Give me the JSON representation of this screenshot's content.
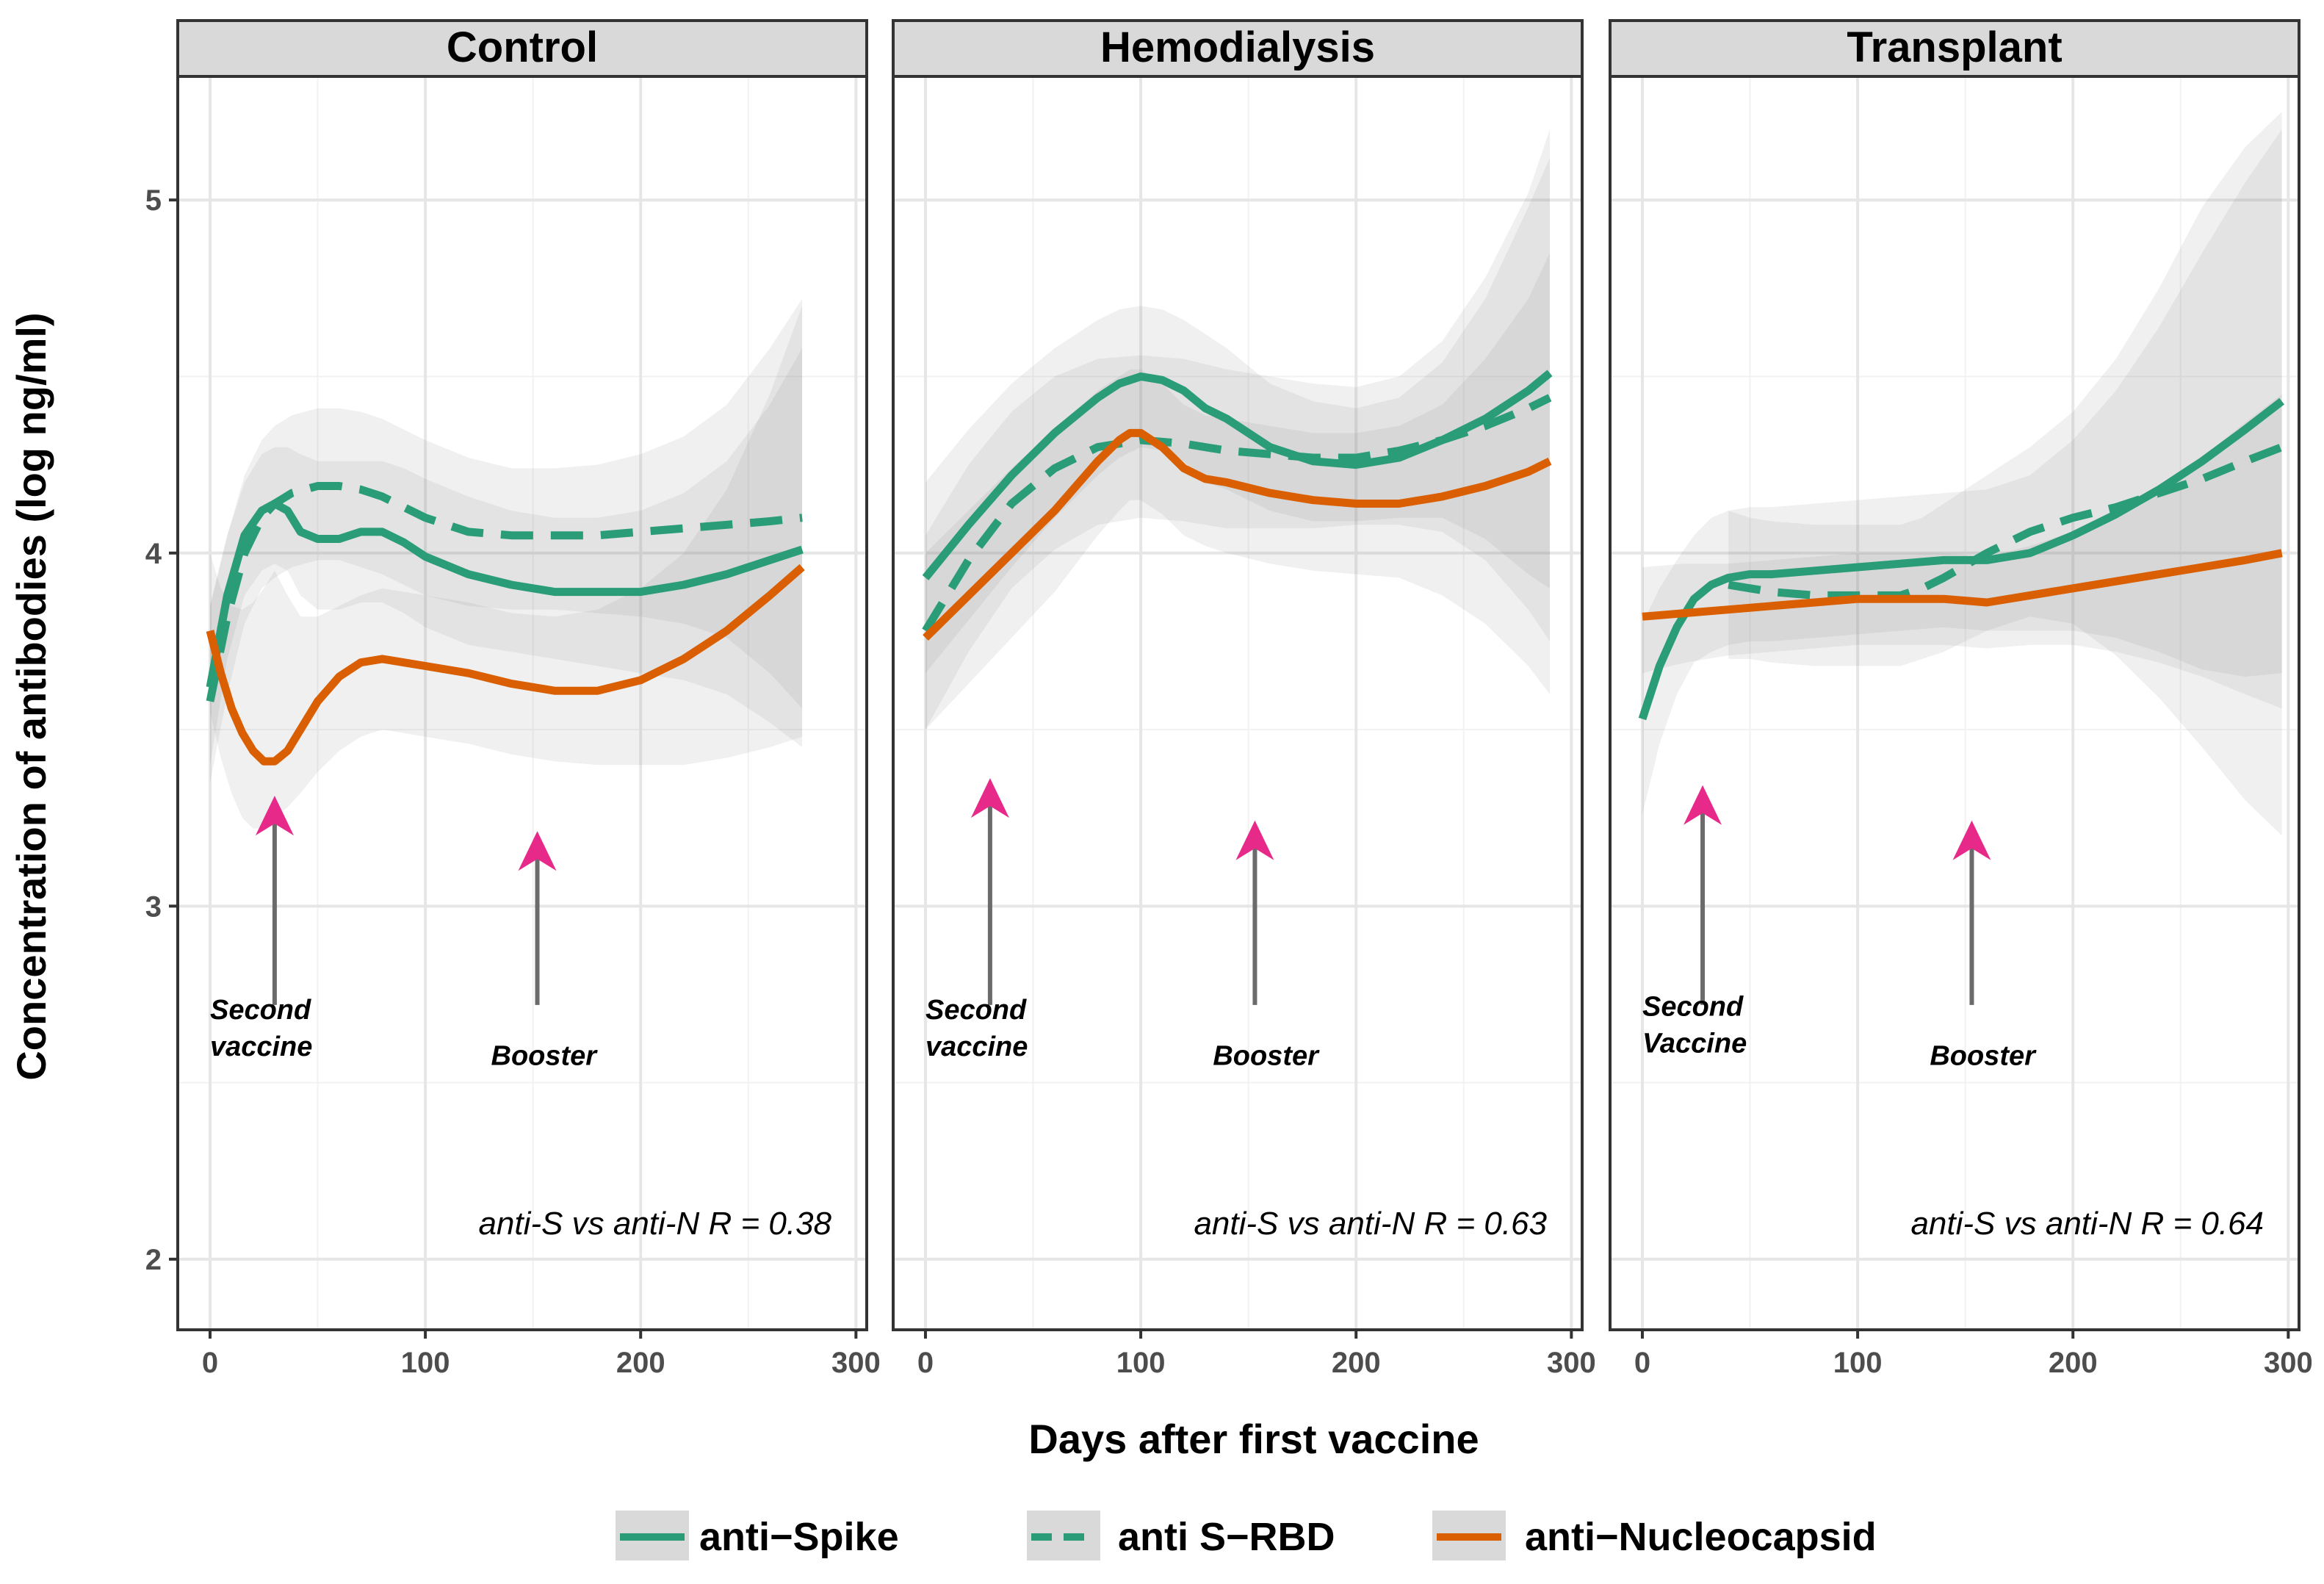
{
  "chart_data": {
    "type": "line",
    "subtype": "faceted smoothed curves with confidence bands",
    "xlabel": "Days after first vaccine",
    "ylabel": "Concentration of antibodies (log ng/ml)",
    "xlim": [
      -15,
      305
    ],
    "ylim": [
      1.8,
      5.35
    ],
    "xticks": [
      0,
      100,
      200,
      300
    ],
    "xtick_labels": [
      "0",
      "100",
      "200",
      "300"
    ],
    "yticks": [
      2,
      3,
      4,
      5
    ],
    "ytick_labels": [
      "2",
      "3",
      "4",
      "5"
    ],
    "grid": true,
    "legend": {
      "placement": "bottom",
      "entries": [
        {
          "label": "anti−Spike",
          "color": "#2a9d78",
          "dash": "solid"
        },
        {
          "label": "anti S−RBD",
          "color": "#2a9d78",
          "dash": "dashed"
        },
        {
          "label": "anti−Nucleocapsid",
          "color": "#d95f02",
          "dash": "solid"
        }
      ]
    },
    "series_colors": {
      "anti-Spike": "#2a9d78",
      "anti-S-RBD": "#2a9d78",
      "anti-Nucleocapsid": "#d95f02"
    },
    "arrow_color": "#e7298a",
    "panels": [
      {
        "title": "Control",
        "r_text": "anti-S vs anti-N R = 0.38",
        "annotations": [
          {
            "lines": [
              "Second",
              "vaccine"
            ],
            "x": 30,
            "arrow_top": 3.3,
            "arrow_bottom": 2.72,
            "label_y": 2.68,
            "align": "start",
            "label_x": 0
          },
          {
            "lines": [
              "Booster"
            ],
            "x": 152,
            "arrow_top": 3.2,
            "arrow_bottom": 2.72,
            "label_y": 2.55,
            "align": "middle",
            "label_x": 155
          }
        ],
        "series": [
          {
            "name": "anti-Spike",
            "dash": "solid",
            "x": [
              0,
              8,
              16,
              24,
              30,
              36,
              42,
              50,
              60,
              70,
              80,
              90,
              100,
              120,
              140,
              160,
              180,
              200,
              220,
              240,
              260,
              275
            ],
            "y": [
              3.62,
              3.88,
              4.05,
              4.12,
              4.14,
              4.12,
              4.06,
              4.04,
              4.04,
              4.06,
              4.06,
              4.03,
              3.99,
              3.94,
              3.91,
              3.89,
              3.89,
              3.89,
              3.91,
              3.94,
              3.98,
              4.01
            ],
            "upper": [
              3.85,
              4.05,
              4.2,
              4.28,
              4.3,
              4.3,
              4.28,
              4.26,
              4.26,
              4.26,
              4.26,
              4.24,
              4.21,
              4.16,
              4.12,
              4.1,
              4.1,
              4.12,
              4.17,
              4.26,
              4.42,
              4.58
            ],
            "lower": [
              3.4,
              3.7,
              3.88,
              3.95,
              3.97,
              3.95,
              3.88,
              3.84,
              3.84,
              3.86,
              3.86,
              3.83,
              3.79,
              3.74,
              3.72,
              3.7,
              3.68,
              3.66,
              3.64,
              3.6,
              3.52,
              3.45
            ]
          },
          {
            "name": "anti-S-RBD",
            "dash": "dashed",
            "x": [
              0,
              8,
              16,
              24,
              30,
              38,
              50,
              60,
              70,
              80,
              90,
              100,
              120,
              140,
              160,
              180,
              200,
              220,
              240,
              260,
              275
            ],
            "y": [
              3.58,
              3.82,
              4.0,
              4.1,
              4.14,
              4.17,
              4.19,
              4.19,
              4.18,
              4.16,
              4.13,
              4.1,
              4.06,
              4.05,
              4.05,
              4.05,
              4.06,
              4.07,
              4.08,
              4.09,
              4.1
            ],
            "upper": [
              3.85,
              4.05,
              4.22,
              4.32,
              4.36,
              4.39,
              4.41,
              4.41,
              4.4,
              4.38,
              4.35,
              4.32,
              4.27,
              4.24,
              4.24,
              4.25,
              4.28,
              4.33,
              4.42,
              4.58,
              4.72
            ],
            "lower": [
              3.35,
              3.6,
              3.8,
              3.9,
              3.93,
              3.96,
              3.98,
              3.98,
              3.96,
              3.94,
              3.91,
              3.88,
              3.85,
              3.84,
              3.84,
              3.83,
              3.82,
              3.8,
              3.76,
              3.66,
              3.56
            ]
          },
          {
            "name": "anti-Nucleocapsid",
            "dash": "solid",
            "x": [
              0,
              5,
              10,
              15,
              20,
              25,
              30,
              36,
              42,
              50,
              60,
              70,
              80,
              90,
              100,
              120,
              140,
              160,
              180,
              200,
              220,
              240,
              260,
              275
            ],
            "y": [
              3.78,
              3.66,
              3.56,
              3.49,
              3.44,
              3.41,
              3.41,
              3.44,
              3.5,
              3.58,
              3.65,
              3.69,
              3.7,
              3.69,
              3.68,
              3.66,
              3.63,
              3.61,
              3.61,
              3.64,
              3.7,
              3.78,
              3.88,
              3.96
            ],
            "upper": [
              4.0,
              3.9,
              3.85,
              3.84,
              3.86,
              3.9,
              3.95,
              3.88,
              3.82,
              3.82,
              3.85,
              3.88,
              3.9,
              3.89,
              3.88,
              3.86,
              3.83,
              3.82,
              3.84,
              3.9,
              4.0,
              4.18,
              4.45,
              4.7
            ],
            "lower": [
              3.55,
              3.42,
              3.32,
              3.25,
              3.22,
              3.22,
              3.25,
              3.28,
              3.32,
              3.38,
              3.44,
              3.48,
              3.5,
              3.49,
              3.48,
              3.46,
              3.43,
              3.41,
              3.4,
              3.4,
              3.4,
              3.42,
              3.45,
              3.48
            ]
          }
        ]
      },
      {
        "title": "Hemodialysis",
        "r_text": "anti-S vs anti-N R = 0.63",
        "annotations": [
          {
            "lines": [
              "Second",
              "vaccine"
            ],
            "x": 30,
            "arrow_top": 3.35,
            "arrow_bottom": 2.72,
            "label_y": 2.68,
            "align": "start",
            "label_x": 0
          },
          {
            "lines": [
              "Booster"
            ],
            "x": 153,
            "arrow_top": 3.23,
            "arrow_bottom": 2.72,
            "label_y": 2.55,
            "align": "middle",
            "label_x": 158
          }
        ],
        "series": [
          {
            "name": "anti-Spike",
            "dash": "solid",
            "x": [
              0,
              20,
              40,
              60,
              80,
              90,
              100,
              110,
              120,
              130,
              140,
              150,
              160,
              180,
              200,
              220,
              240,
              260,
              280,
              290
            ],
            "y": [
              3.93,
              4.08,
              4.22,
              4.34,
              4.44,
              4.48,
              4.5,
              4.49,
              4.46,
              4.41,
              4.38,
              4.34,
              4.3,
              4.26,
              4.25,
              4.27,
              4.32,
              4.38,
              4.46,
              4.51
            ],
            "upper": [
              4.2,
              4.35,
              4.48,
              4.58,
              4.66,
              4.69,
              4.7,
              4.69,
              4.66,
              4.62,
              4.58,
              4.53,
              4.48,
              4.43,
              4.41,
              4.44,
              4.54,
              4.72,
              4.98,
              5.12
            ],
            "lower": [
              3.66,
              3.81,
              3.96,
              4.1,
              4.22,
              4.27,
              4.3,
              4.29,
              4.26,
              4.2,
              4.18,
              4.15,
              4.12,
              4.09,
              4.09,
              4.1,
              4.1,
              4.04,
              3.94,
              3.9
            ]
          },
          {
            "name": "anti-S-RBD",
            "dash": "dashed",
            "x": [
              0,
              20,
              40,
              60,
              80,
              100,
              120,
              140,
              160,
              180,
              200,
              220,
              240,
              260,
              280,
              290
            ],
            "y": [
              3.78,
              3.98,
              4.14,
              4.24,
              4.3,
              4.32,
              4.31,
              4.29,
              4.28,
              4.27,
              4.27,
              4.29,
              4.32,
              4.36,
              4.41,
              4.44
            ],
            "upper": [
              4.05,
              4.25,
              4.4,
              4.5,
              4.55,
              4.56,
              4.55,
              4.52,
              4.5,
              4.48,
              4.47,
              4.5,
              4.6,
              4.78,
              5.02,
              5.2
            ],
            "lower": [
              3.5,
              3.72,
              3.9,
              4.01,
              4.08,
              4.1,
              4.09,
              4.07,
              4.07,
              4.07,
              4.08,
              4.08,
              4.06,
              3.98,
              3.84,
              3.75
            ]
          },
          {
            "name": "anti-Nucleocapsid",
            "dash": "solid",
            "x": [
              0,
              20,
              40,
              60,
              80,
              90,
              95,
              100,
              110,
              120,
              130,
              140,
              160,
              180,
              200,
              220,
              240,
              260,
              280,
              290
            ],
            "y": [
              3.76,
              3.88,
              4.0,
              4.12,
              4.26,
              4.32,
              4.34,
              4.34,
              4.3,
              4.24,
              4.21,
              4.2,
              4.17,
              4.15,
              4.14,
              4.14,
              4.16,
              4.19,
              4.23,
              4.26
            ],
            "upper": [
              4.0,
              4.12,
              4.24,
              4.35,
              4.46,
              4.5,
              4.52,
              4.52,
              4.48,
              4.42,
              4.39,
              4.38,
              4.36,
              4.34,
              4.34,
              4.36,
              4.42,
              4.55,
              4.72,
              4.85
            ],
            "lower": [
              3.5,
              3.63,
              3.76,
              3.89,
              4.05,
              4.12,
              4.15,
              4.15,
              4.11,
              4.05,
              4.02,
              4.0,
              3.97,
              3.95,
              3.94,
              3.93,
              3.88,
              3.8,
              3.68,
              3.6
            ]
          }
        ]
      },
      {
        "title": "Transplant",
        "r_text": "anti-S vs anti-N R = 0.64",
        "annotations": [
          {
            "lines": [
              "Second",
              "Vaccine"
            ],
            "x": 28,
            "arrow_top": 3.33,
            "arrow_bottom": 2.72,
            "label_y": 2.69,
            "align": "start",
            "label_x": 0
          },
          {
            "lines": [
              "Booster"
            ],
            "x": 153,
            "arrow_top": 3.23,
            "arrow_bottom": 2.72,
            "label_y": 2.55,
            "align": "middle",
            "label_x": 158
          }
        ],
        "series": [
          {
            "name": "anti-Spike",
            "dash": "solid",
            "x": [
              0,
              8,
              16,
              24,
              32,
              40,
              50,
              60,
              80,
              100,
              120,
              140,
              160,
              180,
              200,
              220,
              240,
              260,
              280,
              297
            ],
            "y": [
              3.53,
              3.68,
              3.79,
              3.87,
              3.91,
              3.93,
              3.94,
              3.94,
              3.95,
              3.96,
              3.97,
              3.98,
              3.98,
              4.0,
              4.05,
              4.11,
              4.18,
              4.26,
              4.35,
              4.43
            ],
            "upper": [
              3.8,
              3.9,
              3.98,
              4.05,
              4.1,
              4.12,
              4.13,
              4.13,
              4.14,
              4.15,
              4.16,
              4.17,
              4.18,
              4.22,
              4.32,
              4.46,
              4.64,
              4.85,
              5.05,
              5.2
            ],
            "lower": [
              3.26,
              3.46,
              3.6,
              3.69,
              3.72,
              3.74,
              3.75,
              3.75,
              3.76,
              3.77,
              3.78,
              3.79,
              3.78,
              3.78,
              3.78,
              3.76,
              3.72,
              3.67,
              3.65,
              3.66
            ]
          },
          {
            "name": "anti-S-RBD",
            "dash": "dashed",
            "x": [
              40,
              50,
              60,
              80,
              100,
              120,
              130,
              140,
              160,
              180,
              200,
              220,
              240,
              260,
              280,
              297
            ],
            "y": [
              3.91,
              3.9,
              3.89,
              3.88,
              3.88,
              3.88,
              3.9,
              3.93,
              4.0,
              4.06,
              4.1,
              4.13,
              4.17,
              4.21,
              4.26,
              4.3
            ],
            "upper": [
              4.12,
              4.1,
              4.09,
              4.08,
              4.08,
              4.08,
              4.1,
              4.14,
              4.22,
              4.3,
              4.4,
              4.55,
              4.75,
              4.98,
              5.15,
              5.25
            ],
            "lower": [
              3.7,
              3.7,
              3.69,
              3.68,
              3.68,
              3.68,
              3.7,
              3.72,
              3.78,
              3.82,
              3.8,
              3.71,
              3.59,
              3.45,
              3.3,
              3.2
            ]
          },
          {
            "name": "anti-Nucleocapsid",
            "dash": "solid",
            "x": [
              0,
              20,
              40,
              60,
              80,
              100,
              120,
              140,
              160,
              180,
              200,
              220,
              240,
              260,
              280,
              297
            ],
            "y": [
              3.82,
              3.83,
              3.84,
              3.85,
              3.86,
              3.87,
              3.87,
              3.87,
              3.86,
              3.88,
              3.9,
              3.92,
              3.94,
              3.96,
              3.98,
              4.0
            ],
            "upper": [
              3.96,
              3.97,
              3.97,
              3.98,
              3.99,
              4.0,
              4.0,
              4.0,
              3.99,
              4.02,
              4.06,
              4.12,
              4.19,
              4.27,
              4.37,
              4.45
            ],
            "lower": [
              3.66,
              3.69,
              3.71,
              3.72,
              3.73,
              3.74,
              3.74,
              3.74,
              3.73,
              3.74,
              3.74,
              3.72,
              3.69,
              3.65,
              3.6,
              3.56
            ]
          }
        ]
      }
    ]
  }
}
